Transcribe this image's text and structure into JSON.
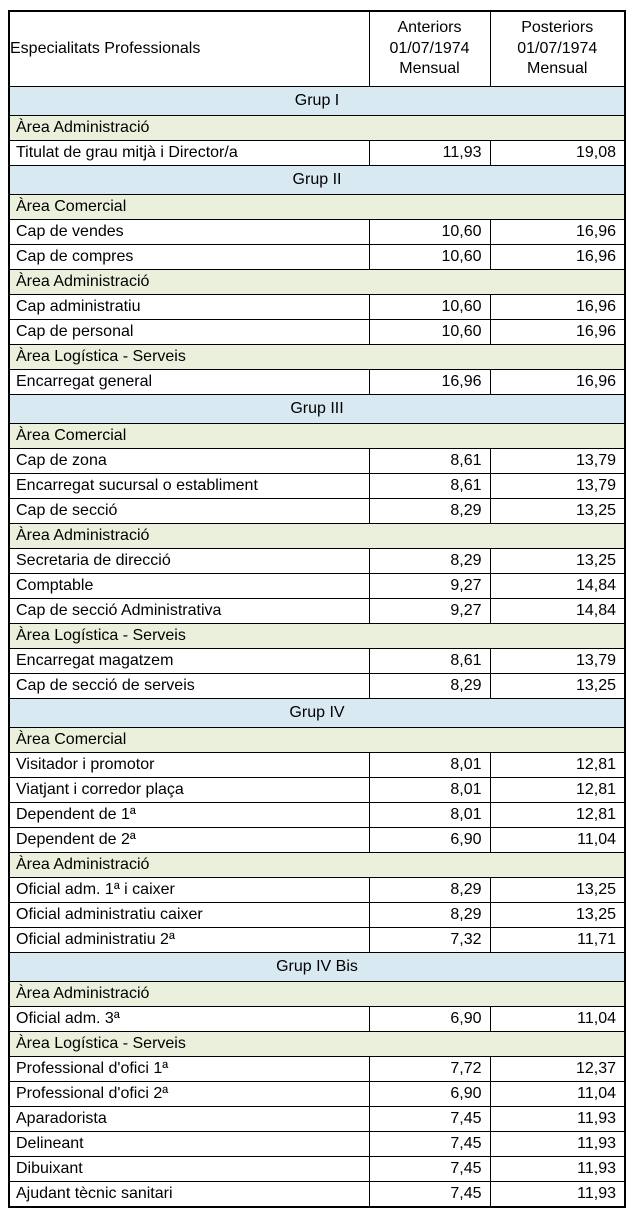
{
  "table": {
    "header": {
      "specialties": "Especialitats Professionals",
      "anterior": "Anteriors\n01/07/1974\nMensual",
      "posterior": "Posteriors\n01/07/1974\nMensual"
    },
    "colors": {
      "group_bg": "#d9e9f2",
      "area_bg": "#eaf0db",
      "border": "#000000"
    },
    "rows": [
      {
        "type": "group",
        "label": "Grup I"
      },
      {
        "type": "area",
        "label": "Àrea Administració"
      },
      {
        "type": "data",
        "label": "Titulat de grau mitjà i Director/a",
        "anterior": "11,93",
        "posterior": "19,08"
      },
      {
        "type": "group",
        "label": "Grup II"
      },
      {
        "type": "area",
        "label": "Àrea Comercial"
      },
      {
        "type": "data",
        "label": "Cap de vendes",
        "anterior": "10,60",
        "posterior": "16,96"
      },
      {
        "type": "data",
        "label": "Cap de compres",
        "anterior": "10,60",
        "posterior": "16,96"
      },
      {
        "type": "area",
        "label": "Àrea Administració"
      },
      {
        "type": "data",
        "label": "Cap administratiu",
        "anterior": "10,60",
        "posterior": "16,96"
      },
      {
        "type": "data",
        "label": "Cap de personal",
        "anterior": "10,60",
        "posterior": "16,96"
      },
      {
        "type": "area",
        "label": "Àrea Logística - Serveis"
      },
      {
        "type": "data",
        "label": "Encarregat general",
        "anterior": "16,96",
        "posterior": "16,96"
      },
      {
        "type": "group",
        "label": "Grup III"
      },
      {
        "type": "area",
        "label": "Àrea Comercial"
      },
      {
        "type": "data",
        "label": "Cap de zona",
        "anterior": "8,61",
        "posterior": "13,79"
      },
      {
        "type": "data",
        "label": "Encarregat sucursal o establiment",
        "anterior": "8,61",
        "posterior": "13,79"
      },
      {
        "type": "data",
        "label": "Cap de secció",
        "anterior": "8,29",
        "posterior": "13,25"
      },
      {
        "type": "area",
        "label": "Àrea Administració"
      },
      {
        "type": "data",
        "label": "Secretaria de direcció",
        "anterior": "8,29",
        "posterior": "13,25"
      },
      {
        "type": "data",
        "label": "Comptable",
        "anterior": "9,27",
        "posterior": "14,84"
      },
      {
        "type": "data",
        "label": "Cap de secció Administrativa",
        "anterior": "9,27",
        "posterior": "14,84"
      },
      {
        "type": "area",
        "label": "Àrea Logística - Serveis"
      },
      {
        "type": "data",
        "label": "Encarregat magatzem",
        "anterior": "8,61",
        "posterior": "13,79"
      },
      {
        "type": "data",
        "label": "Cap de secció de serveis",
        "anterior": "8,29",
        "posterior": "13,25"
      },
      {
        "type": "group",
        "label": "Grup IV"
      },
      {
        "type": "area",
        "label": "Àrea Comercial"
      },
      {
        "type": "data",
        "label": "Visitador i promotor",
        "anterior": "8,01",
        "posterior": "12,81"
      },
      {
        "type": "data",
        "label": "Viatjant i corredor plaça",
        "anterior": "8,01",
        "posterior": "12,81"
      },
      {
        "type": "data",
        "label": "Dependent de 1ª",
        "anterior": "8,01",
        "posterior": "12,81"
      },
      {
        "type": "data",
        "label": "Dependent de 2ª",
        "anterior": "6,90",
        "posterior": "11,04"
      },
      {
        "type": "area",
        "label": "Àrea Administració"
      },
      {
        "type": "data",
        "label": "Oficial adm. 1ª i caixer",
        "anterior": "8,29",
        "posterior": "13,25"
      },
      {
        "type": "data",
        "label": "Oficial administratiu caixer",
        "anterior": "8,29",
        "posterior": "13,25"
      },
      {
        "type": "data",
        "label": "Oficial administratiu 2ª",
        "anterior": "7,32",
        "posterior": "11,71"
      },
      {
        "type": "group",
        "label": "Grup IV Bis"
      },
      {
        "type": "area",
        "label": "Àrea Administració"
      },
      {
        "type": "data",
        "label": "Oficial adm. 3ª",
        "anterior": "6,90",
        "posterior": "11,04"
      },
      {
        "type": "area",
        "label": "Àrea Logística - Serveis"
      },
      {
        "type": "data",
        "label": "Professional d'ofici 1ª",
        "anterior": "7,72",
        "posterior": "12,37"
      },
      {
        "type": "data",
        "label": "Professional d'ofici 2ª",
        "anterior": "6,90",
        "posterior": "11,04"
      },
      {
        "type": "data",
        "label": "Aparadorista",
        "anterior": "7,45",
        "posterior": "11,93"
      },
      {
        "type": "data",
        "label": "Delineant",
        "anterior": "7,45",
        "posterior": "11,93"
      },
      {
        "type": "data",
        "label": "Dibuixant",
        "anterior": "7,45",
        "posterior": "11,93"
      },
      {
        "type": "data",
        "label": "Ajudant tècnic sanitari",
        "anterior": "7,45",
        "posterior": "11,93"
      }
    ]
  }
}
